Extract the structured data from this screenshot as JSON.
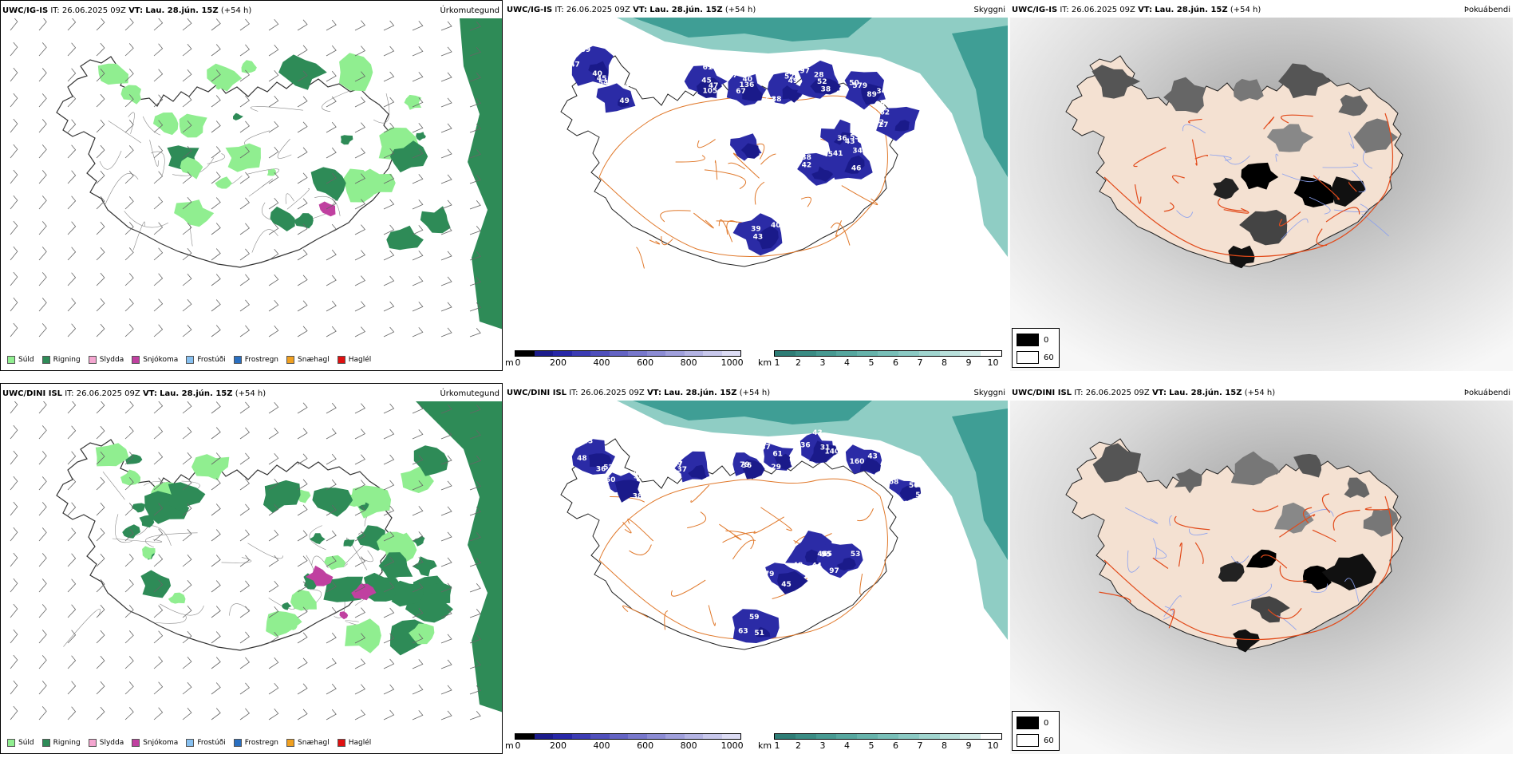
{
  "colors": {
    "sea_teal": "#3f9e95",
    "sea_teal_light": "#8fcdc4",
    "cloud_blue": "#2b2ba6",
    "land_pink": "#f4e1d2",
    "road_orange": "#e0782a",
    "rain_green": "#2e8b57",
    "drizzle_green": "#90ee90",
    "snow_magenta": "#c040a0"
  },
  "rows": [
    {
      "model": "UWC/IG-IS",
      "panels": [
        {
          "field": "Úrkomutegund"
        },
        {
          "field": "Skyggni",
          "numbers": [
            "45",
            "49",
            "45",
            "40",
            "38",
            "28",
            "34",
            "62",
            "31",
            "42",
            "34",
            "40",
            "39",
            "39",
            "54",
            "47",
            "57",
            "63",
            "38",
            "89",
            "58",
            "43",
            "38",
            "46",
            "43",
            "44",
            "47",
            "45",
            "61",
            "67",
            "49",
            "97",
            "50",
            "82",
            "53",
            "45",
            "41",
            "39",
            "43",
            "40",
            "46",
            "105",
            "136",
            "52",
            "52",
            "579",
            "727",
            "36"
          ]
        },
        {
          "field": "Þokuábendi"
        }
      ]
    },
    {
      "model": "UWC/DINI ISL",
      "panels": [
        {
          "field": "Úrkomutegund"
        },
        {
          "field": "Skyggni",
          "numbers": [
            "52",
            "40",
            "30",
            "37",
            "40",
            "36",
            "59",
            "57",
            "45",
            "48",
            "53",
            "59",
            "36",
            "38",
            "37",
            "36",
            "29",
            "43",
            "43",
            "50",
            "44",
            "45",
            "45",
            "63",
            "43",
            "38",
            "67",
            "79",
            "61",
            "140",
            "160",
            "68",
            "55",
            "79",
            "97",
            "51",
            "48",
            "50",
            "18",
            "6",
            "37",
            "31"
          ]
        },
        {
          "field": "Þokuábendi"
        }
      ]
    }
  ],
  "run_info": {
    "it_label": "IT:",
    "it_value": "26.06.2025 09Z",
    "vt_label": "VT:",
    "vt_value": "Lau. 28.jún. 15Z",
    "lead": "(+54 h)"
  },
  "precip_legend": [
    {
      "label": "Súld",
      "color": "#90ee90"
    },
    {
      "label": "Rigning",
      "color": "#2e8b57"
    },
    {
      "label": "Slydda",
      "color": "#f4a6d0"
    },
    {
      "label": "Snjókoma",
      "color": "#c040a0"
    },
    {
      "label": "Frostúði",
      "color": "#87c0f0"
    },
    {
      "label": "Frostregn",
      "color": "#2a6fc0"
    },
    {
      "label": "Snæhagl",
      "color": "#f0a020"
    },
    {
      "label": "Haglél",
      "color": "#e01010"
    }
  ],
  "cloud_base_scale": {
    "unit": "m",
    "ticks": [
      "0",
      "200",
      "400",
      "600",
      "800",
      "1000"
    ],
    "colors": [
      "#000000",
      "#1c1c8c",
      "#2828a8",
      "#3c3cb4",
      "#5050bc",
      "#6464c4",
      "#7878cc",
      "#8c8cd4",
      "#a0a0dc",
      "#b4b4e4",
      "#c8c8ec",
      "#dcdcf4"
    ]
  },
  "visibility_scale": {
    "unit": "km",
    "ticks": [
      "1",
      "2",
      "3",
      "4",
      "5",
      "6",
      "7",
      "8",
      "9",
      "10"
    ],
    "colors": [
      "#2e7d76",
      "#3a8c84",
      "#479a92",
      "#56a79f",
      "#66b3ab",
      "#78bfb8",
      "#8bcac4",
      "#a0d5cf",
      "#b8e0db",
      "#d2ebe8",
      "#ffffff"
    ]
  },
  "fog_legend": [
    {
      "value": "0",
      "color": "#000000"
    },
    {
      "value": "60",
      "color": "#ffffff"
    }
  ]
}
